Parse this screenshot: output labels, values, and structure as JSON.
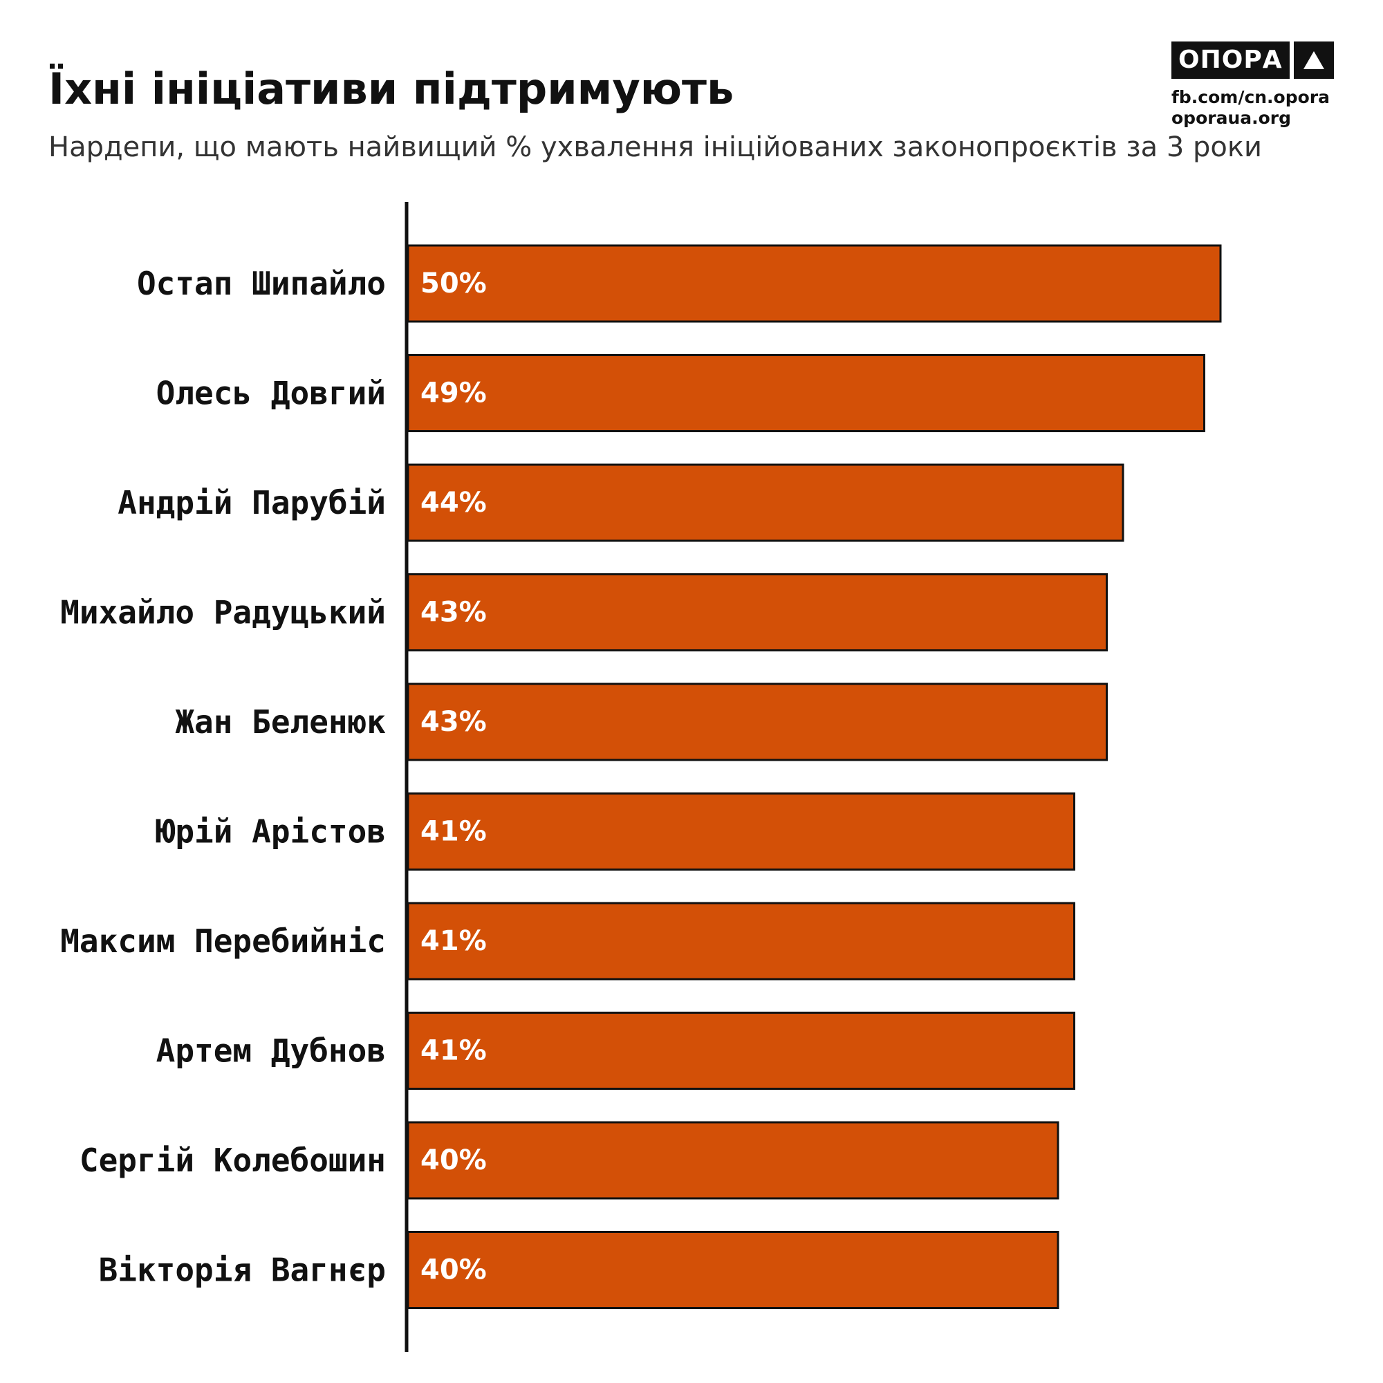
{
  "header": {
    "title": "Їхні ініціативи підтримують",
    "subtitle": "Нардепи, що мають найвищий % ухвалення ініційованих законопроєктів за 3 роки"
  },
  "logo": {
    "name": "ОПОРА",
    "links": [
      "fb.com/cn.opora",
      "oporaua.org"
    ]
  },
  "colors": {
    "bar": "#D35007",
    "bar_border": "#111111",
    "axis": "#111111",
    "value_label": "#ffffff"
  },
  "chart_data": {
    "type": "bar",
    "orientation": "horizontal",
    "categories": [
      "Остап Шипайло",
      "Олесь Довгий",
      "Андрій Парубій",
      "Михайло Радуцький",
      "Жан Беленюк",
      "Юрій Арістов",
      "Максим Перебийніс",
      "Артем Дубнов",
      "Сергій Колебошин",
      "Вікторія Вагнєр"
    ],
    "values": [
      50,
      49,
      44,
      43,
      43,
      41,
      41,
      41,
      40,
      40
    ],
    "value_labels": [
      "50%",
      "49%",
      "44%",
      "43%",
      "43%",
      "41%",
      "41%",
      "41%",
      "40%",
      "40%"
    ],
    "xlim": [
      0,
      50
    ],
    "grid": false,
    "legend": "none"
  }
}
